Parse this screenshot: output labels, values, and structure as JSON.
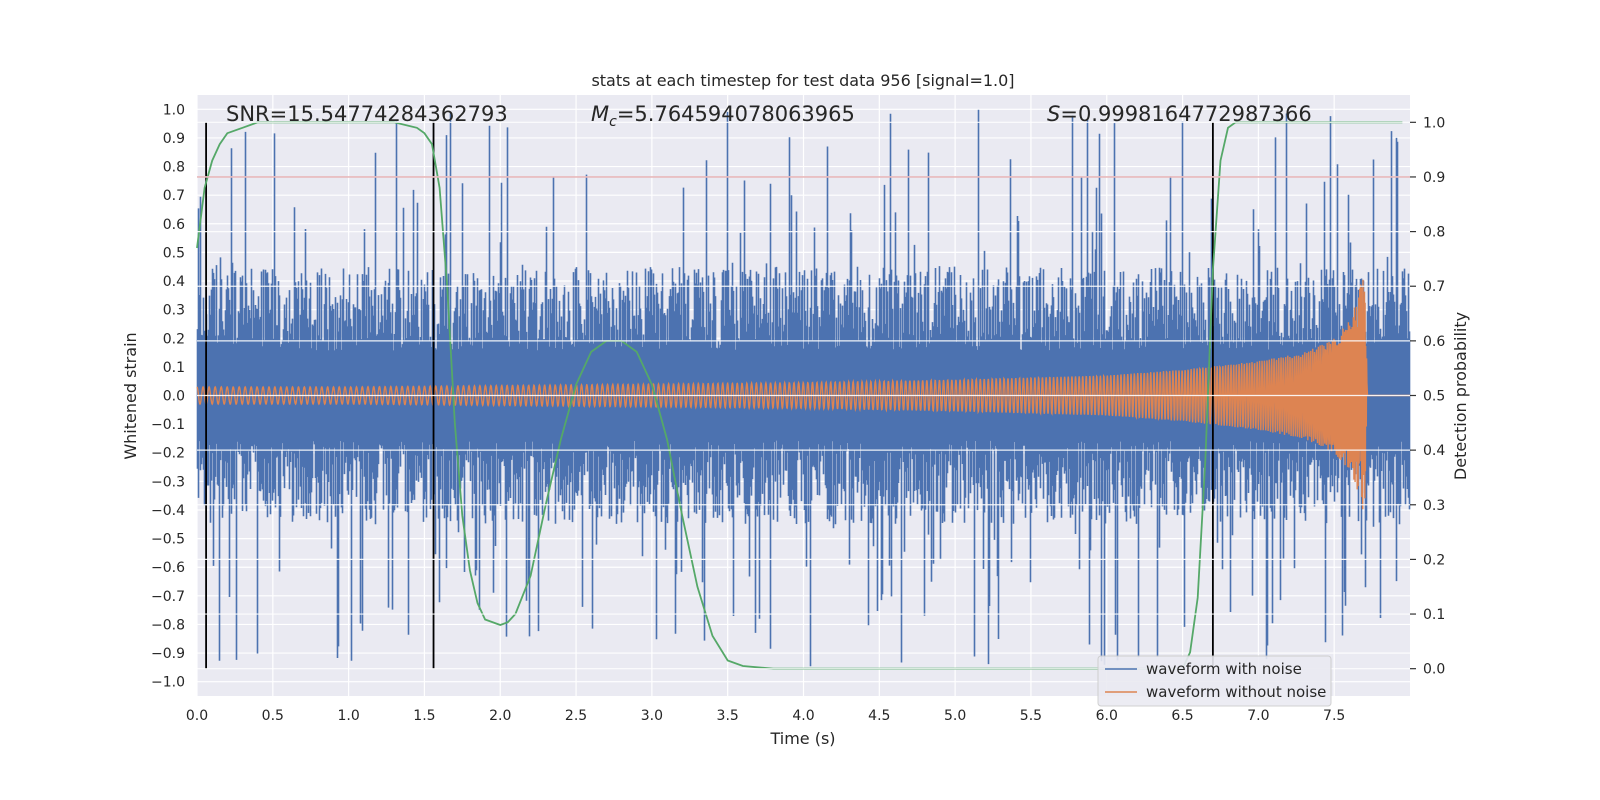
{
  "chart_data": {
    "type": "line",
    "title": "stats at each timestep for test data 956 [signal=1.0]",
    "xlabel": "Time (s)",
    "ylabel": "Whitened strain",
    "ylabel_right": "Detection probability",
    "xlim": [
      0.0,
      8.0
    ],
    "ylim": [
      -1.05,
      1.05
    ],
    "ylim_right": [
      -0.05,
      1.05
    ],
    "x_ticks": [
      "0.0",
      "0.5",
      "1.0",
      "1.5",
      "2.0",
      "2.5",
      "3.0",
      "3.5",
      "4.0",
      "4.5",
      "5.0",
      "5.5",
      "6.0",
      "6.5",
      "7.0",
      "7.5"
    ],
    "y_ticks": [
      "1.0",
      "0.9",
      "0.8",
      "0.7",
      "0.6",
      "0.5",
      "0.4",
      "0.3",
      "0.2",
      "0.1",
      "0.0",
      "−0.1",
      "−0.2",
      "−0.3",
      "−0.4",
      "−0.5",
      "−0.6",
      "−0.7",
      "−0.8",
      "−0.9",
      "−1.0"
    ],
    "y_right_ticks": [
      "1.0",
      "0.9",
      "0.8",
      "0.7",
      "0.6",
      "0.5",
      "0.4",
      "0.3",
      "0.2",
      "0.1",
      "0.0"
    ],
    "annotations": {
      "snr": "SNR=15.54774284362793",
      "mc_symbol": "M",
      "mc_sub": "c",
      "mc_value": "=5.764594078063965",
      "s_symbol": "S",
      "s_value": "=0.9998164772987366"
    },
    "threshold": {
      "value": 0.9,
      "axis": "right",
      "color": "#c44e52"
    },
    "vertical_markers": [
      0.06,
      1.56,
      6.7
    ],
    "noise_envelope": {
      "name": "waveform with noise",
      "color": "#4c72b0",
      "typical_amplitude": 0.45,
      "max_amplitude": 1.0,
      "min_amplitude": -0.96
    },
    "signal": {
      "name": "waveform without noise",
      "color": "#dd8452",
      "t": [
        0.0,
        1.0,
        2.0,
        3.0,
        4.0,
        5.0,
        6.0,
        6.5,
        7.0,
        7.3,
        7.5,
        7.6,
        7.65,
        7.7,
        7.72,
        8.0
      ],
      "amplitude": [
        0.03,
        0.03,
        0.035,
        0.04,
        0.045,
        0.055,
        0.07,
        0.09,
        0.12,
        0.15,
        0.2,
        0.26,
        0.33,
        0.45,
        0.0,
        0.0
      ]
    },
    "detection_probability": {
      "color": "#55a868",
      "t": [
        0.0,
        0.05,
        0.1,
        0.15,
        0.2,
        0.3,
        0.4,
        0.5,
        0.8,
        1.0,
        1.3,
        1.45,
        1.5,
        1.55,
        1.6,
        1.65,
        1.7,
        1.75,
        1.8,
        1.85,
        1.9,
        2.0,
        2.05,
        2.1,
        2.2,
        2.3,
        2.4,
        2.5,
        2.6,
        2.7,
        2.8,
        2.9,
        3.0,
        3.1,
        3.2,
        3.3,
        3.4,
        3.5,
        3.6,
        3.8,
        4.0,
        5.0,
        6.0,
        6.5,
        6.55,
        6.6,
        6.65,
        6.7,
        6.75,
        6.8,
        6.85,
        7.0,
        7.5,
        7.95
      ],
      "values": [
        0.77,
        0.88,
        0.93,
        0.96,
        0.98,
        0.99,
        1.0,
        1.0,
        1.0,
        1.0,
        1.0,
        0.99,
        0.98,
        0.96,
        0.88,
        0.7,
        0.45,
        0.28,
        0.18,
        0.12,
        0.09,
        0.08,
        0.085,
        0.1,
        0.17,
        0.3,
        0.42,
        0.52,
        0.58,
        0.6,
        0.6,
        0.58,
        0.52,
        0.42,
        0.28,
        0.15,
        0.06,
        0.015,
        0.005,
        0.0,
        0.0,
        0.0,
        0.0,
        0.0,
        0.03,
        0.13,
        0.38,
        0.73,
        0.93,
        0.99,
        1.0,
        1.0,
        1.0,
        1.0
      ]
    },
    "legend": {
      "placement": "lower-right",
      "items": [
        "waveform with noise",
        "waveform without noise"
      ]
    }
  }
}
